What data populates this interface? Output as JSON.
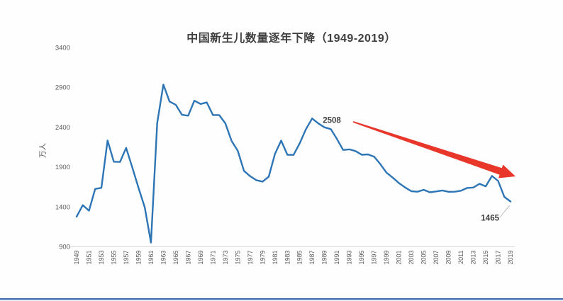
{
  "chart_data": {
    "type": "line",
    "title": "中国新生儿数量逐年下降（1949-2019）",
    "ylabel": "万人",
    "xlabel": "",
    "xlim": [
      1949,
      2019
    ],
    "ylim": [
      900,
      3400
    ],
    "grid": false,
    "legend": "none",
    "line_color": "#2e75b6",
    "axis_line_color": "#d9d9d9",
    "arrow_color": "#e9362a",
    "leader_line_color": "#bfbfbf",
    "y_ticks": [
      900,
      1400,
      1900,
      2400,
      2900,
      3400
    ],
    "x_tick_labels": [
      "1949",
      "1951",
      "1953",
      "1955",
      "1957",
      "1959",
      "1961",
      "1963",
      "1965",
      "1967",
      "1969",
      "1971",
      "1973",
      "1975",
      "1977",
      "1979",
      "1981",
      "1983",
      "1985",
      "1987",
      "1989",
      "1991",
      "1993",
      "1995",
      "1997",
      "1999",
      "2001",
      "2003",
      "2005",
      "2007",
      "2009",
      "2011",
      "2013",
      "2015",
      "2017",
      "2019"
    ],
    "x": [
      1949,
      1950,
      1951,
      1952,
      1953,
      1954,
      1955,
      1956,
      1957,
      1958,
      1959,
      1960,
      1961,
      1962,
      1963,
      1964,
      1965,
      1966,
      1967,
      1968,
      1969,
      1970,
      1971,
      1972,
      1973,
      1974,
      1975,
      1976,
      1977,
      1978,
      1979,
      1980,
      1981,
      1982,
      1983,
      1984,
      1985,
      1986,
      1987,
      1988,
      1989,
      1990,
      1991,
      1992,
      1993,
      1994,
      1995,
      1996,
      1997,
      1998,
      1999,
      2000,
      2001,
      2002,
      2003,
      2004,
      2005,
      2006,
      2007,
      2008,
      2009,
      2010,
      2011,
      2012,
      2013,
      2014,
      2015,
      2016,
      2017,
      2018,
      2019
    ],
    "values": [
      1275,
      1419,
      1349,
      1622,
      1637,
      2232,
      1965,
      1961,
      2138,
      1889,
      1635,
      1389,
      949,
      2451,
      2934,
      2721,
      2679,
      2554,
      2543,
      2731,
      2690,
      2710,
      2551,
      2550,
      2447,
      2226,
      2102,
      1849,
      1783,
      1733,
      1715,
      1776,
      2064,
      2230,
      2052,
      2050,
      2196,
      2374,
      2508,
      2445,
      2396,
      2374,
      2250,
      2113,
      2120,
      2098,
      2052,
      2057,
      2028,
      1934,
      1827,
      1765,
      1696,
      1641,
      1594,
      1588,
      1612,
      1581,
      1591,
      1604,
      1587,
      1588,
      1600,
      1635,
      1640,
      1687,
      1655,
      1786,
      1723,
      1523,
      1465
    ],
    "annotations": [
      {
        "text": "2508",
        "year": 1987,
        "value": 2508
      },
      {
        "text": "1465",
        "year": 2019,
        "value": 1465
      }
    ]
  }
}
